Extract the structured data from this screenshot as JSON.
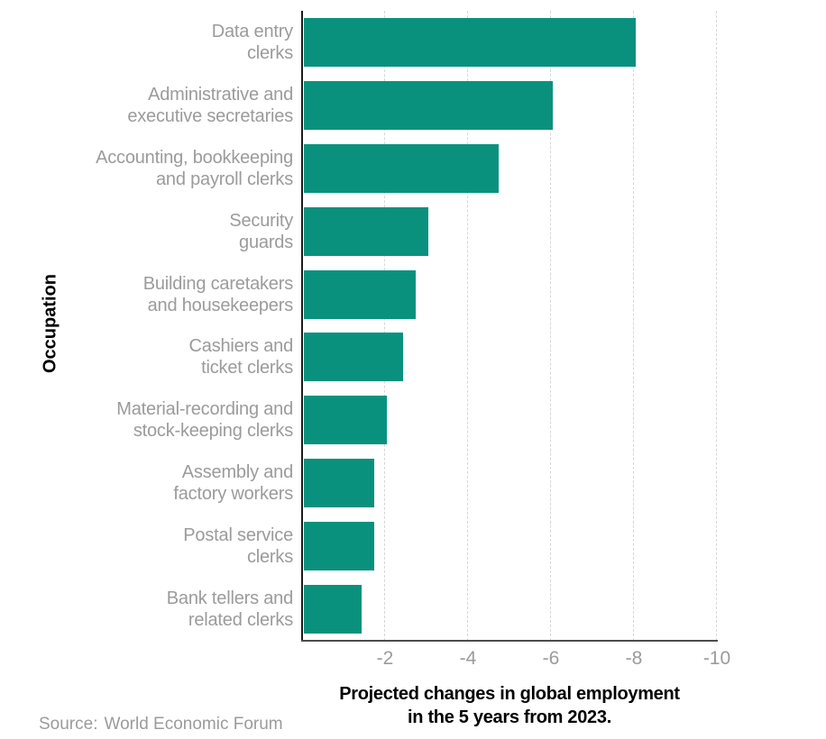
{
  "figure": {
    "y_axis_title": "Occupation",
    "x_axis_title_lines": [
      "Projected changes in global employment",
      "in the 5 years from 2023."
    ],
    "source": {
      "label": "Source:",
      "value": "World Economic Forum"
    }
  },
  "colors": {
    "bar": "#0a917e",
    "label_gray": "#9b9b9b",
    "axis_left": "#1c1c1c",
    "axis_bottom": "#4d4d4d",
    "grid": "#d6d6d6",
    "title_black": "#000000"
  },
  "chart_data": {
    "type": "bar",
    "orientation": "horizontal",
    "title": "",
    "xlabel": "Projected changes in global employment in the 5 years from 2023.",
    "ylabel": "Occupation",
    "categories": [
      "Data entry clerks",
      "Administrative and executive secretaries",
      "Accounting, bookkeeping and payroll clerks",
      "Security guards",
      "Building caretakers and housekeepers",
      "Cashiers and ticket clerks",
      "Material-recording and stock-keeping clerks",
      "Assembly and factory workers",
      "Postal service clerks",
      "Bank tellers and related clerks"
    ],
    "category_label_lines": [
      [
        "Data entry",
        "clerks"
      ],
      [
        "Administrative and",
        "executive secretaries"
      ],
      [
        "Accounting, bookkeeping",
        "and payroll clerks"
      ],
      [
        "Security",
        "guards"
      ],
      [
        "Building caretakers",
        "and housekeepers"
      ],
      [
        "Cashiers and",
        "ticket clerks"
      ],
      [
        "Material-recording and",
        "stock-keeping clerks"
      ],
      [
        "Assembly and",
        "factory workers"
      ],
      [
        "Postal service",
        "clerks"
      ],
      [
        "Bank tellers and",
        "related clerks"
      ]
    ],
    "values": [
      -8,
      -6,
      -4.7,
      -3,
      -2.7,
      -2.4,
      -2,
      -1.7,
      -1.7,
      -1.4
    ],
    "xlim": [
      0,
      -10
    ],
    "x_ticks": [
      -2,
      -4,
      -6,
      -8,
      -10
    ],
    "grid": "vertical-dashed",
    "legend": "none",
    "source": "Source: World Economic Forum"
  }
}
